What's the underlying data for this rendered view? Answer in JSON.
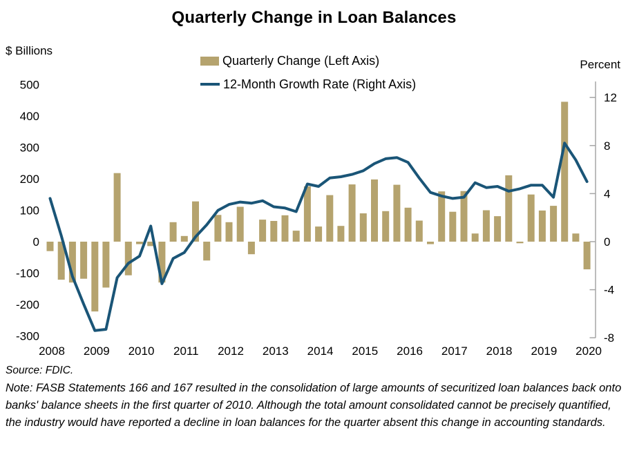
{
  "title": "Quarterly Change in Loan Balances",
  "legend": {
    "bar_label": "Quarterly Change (Left Axis)",
    "line_label": "12-Month Growth Rate (Right Axis)"
  },
  "left_axis": {
    "caption": "$ Billions",
    "ticks": [
      500,
      400,
      300,
      200,
      100,
      0,
      -100,
      -200,
      -300
    ]
  },
  "right_axis": {
    "caption": "Percent",
    "ticks": [
      12,
      8,
      4,
      0,
      -4,
      -8
    ]
  },
  "x_axis": {
    "year_labels": [
      "2008",
      "2009",
      "2010",
      "2011",
      "2012",
      "2013",
      "2014",
      "2015",
      "2016",
      "2017",
      "2018",
      "2019",
      "2020"
    ]
  },
  "footer": {
    "source": "Source: FDIC.",
    "note": "Note: FASB Statements 166 and 167 resulted in the consolidation of large amounts of securitized loan balances back onto banks' balance sheets in the first quarter of 2010.  Although the total amount consolidated cannot be precisely quantified, the industry would have reported a decline in loan balances for the quarter absent this change in accounting standards."
  },
  "colors": {
    "bar": "#b5a36e",
    "line": "#1a5577",
    "text": "#000000",
    "background": "#ffffff"
  },
  "chart_data": {
    "type": "bar",
    "subtype": "bar-line combo, dual axis",
    "title": "Quarterly Change in Loan Balances",
    "xlabel": "",
    "ylabel_left": "$ Billions",
    "ylabel_right": "Percent",
    "left_ylim": [
      -300,
      500
    ],
    "right_ylim": [
      -8,
      12
    ],
    "grid": false,
    "legend_position": "top-center",
    "categories": [
      "2008 Q3",
      "2008 Q4",
      "2009 Q1",
      "2009 Q2",
      "2009 Q3",
      "2009 Q4",
      "2010 Q1",
      "2010 Q2",
      "2010 Q3",
      "2010 Q4",
      "2011 Q1",
      "2011 Q2",
      "2011 Q3",
      "2011 Q4",
      "2012 Q1",
      "2012 Q2",
      "2012 Q3",
      "2012 Q4",
      "2013 Q1",
      "2013 Q2",
      "2013 Q3",
      "2013 Q4",
      "2014 Q1",
      "2014 Q2",
      "2014 Q3",
      "2014 Q4",
      "2015 Q1",
      "2015 Q2",
      "2015 Q3",
      "2015 Q4",
      "2016 Q1",
      "2016 Q2",
      "2016 Q3",
      "2016 Q4",
      "2017 Q1",
      "2017 Q2",
      "2017 Q3",
      "2017 Q4",
      "2018 Q1",
      "2018 Q2",
      "2018 Q3",
      "2018 Q4",
      "2019 Q1",
      "2019 Q2",
      "2019 Q3",
      "2019 Q4",
      "2020 Q1",
      "2020 Q2",
      "2020 Q3"
    ],
    "series": [
      {
        "name": "Quarterly Change (Left Axis)",
        "type": "bar",
        "axis": "left",
        "unit": "$ billions",
        "values": [
          -30,
          -121,
          -130,
          -118,
          -222,
          -146,
          218,
          -107,
          -8,
          -14,
          -130,
          62,
          18,
          128,
          -60,
          85,
          62,
          111,
          -40,
          70,
          66,
          84,
          35,
          176,
          48,
          148,
          50,
          182,
          90,
          198,
          97,
          181,
          108,
          67,
          -8,
          160,
          95,
          161,
          26,
          100,
          81,
          211,
          -5,
          150,
          99,
          114,
          445,
          26,
          -88
        ]
      },
      {
        "name": "12-Month Growth Rate (Right Axis)",
        "type": "line",
        "axis": "right",
        "unit": "percent",
        "values": [
          3.6,
          0.5,
          -2.9,
          -5.2,
          -7.4,
          -7.3,
          -3.0,
          -1.8,
          -1.2,
          1.3,
          -3.5,
          -1.4,
          -0.9,
          0.4,
          1.4,
          2.6,
          3.1,
          3.3,
          3.2,
          3.4,
          2.9,
          2.8,
          2.5,
          4.8,
          4.6,
          5.3,
          5.4,
          5.6,
          5.9,
          6.5,
          6.9,
          7.0,
          6.6,
          5.3,
          4.1,
          3.8,
          3.6,
          3.7,
          4.9,
          4.5,
          4.6,
          4.2,
          4.4,
          4.7,
          4.7,
          3.7,
          8.2,
          6.8,
          5.0
        ]
      }
    ]
  }
}
